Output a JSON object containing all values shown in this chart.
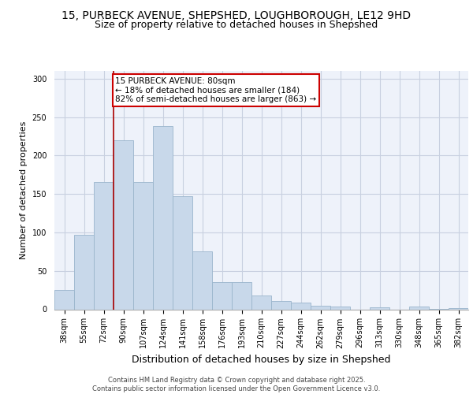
{
  "title_line1": "15, PURBECK AVENUE, SHEPSHED, LOUGHBOROUGH, LE12 9HD",
  "title_line2": "Size of property relative to detached houses in Shepshed",
  "xlabel": "Distribution of detached houses by size in Shepshed",
  "ylabel": "Number of detached properties",
  "categories": [
    "38sqm",
    "55sqm",
    "72sqm",
    "90sqm",
    "107sqm",
    "124sqm",
    "141sqm",
    "158sqm",
    "176sqm",
    "193sqm",
    "210sqm",
    "227sqm",
    "244sqm",
    "262sqm",
    "279sqm",
    "296sqm",
    "313sqm",
    "330sqm",
    "348sqm",
    "365sqm",
    "382sqm"
  ],
  "values": [
    25,
    97,
    165,
    220,
    165,
    238,
    147,
    75,
    35,
    35,
    18,
    11,
    9,
    5,
    4,
    0,
    3,
    0,
    4,
    1,
    2
  ],
  "bar_color": "#c8d8ea",
  "bar_edge_color": "#9ab5cc",
  "annotation_text_line1": "15 PURBECK AVENUE: 80sqm",
  "annotation_text_line2": "← 18% of detached houses are smaller (184)",
  "annotation_text_line3": "82% of semi-detached houses are larger (863) →",
  "annotation_box_color": "white",
  "annotation_border_color": "#cc0000",
  "vline_color": "#aa0000",
  "footer_line1": "Contains HM Land Registry data © Crown copyright and database right 2025.",
  "footer_line2": "Contains public sector information licensed under the Open Government Licence v3.0.",
  "ylim": [
    0,
    310
  ],
  "background_color": "#eef2fa",
  "grid_color": "#c8d0e0",
  "title_fontsize": 10,
  "subtitle_fontsize": 9,
  "ylabel_fontsize": 8,
  "xlabel_fontsize": 9,
  "tick_fontsize": 7,
  "footer_fontsize": 6,
  "annot_fontsize": 7.5
}
